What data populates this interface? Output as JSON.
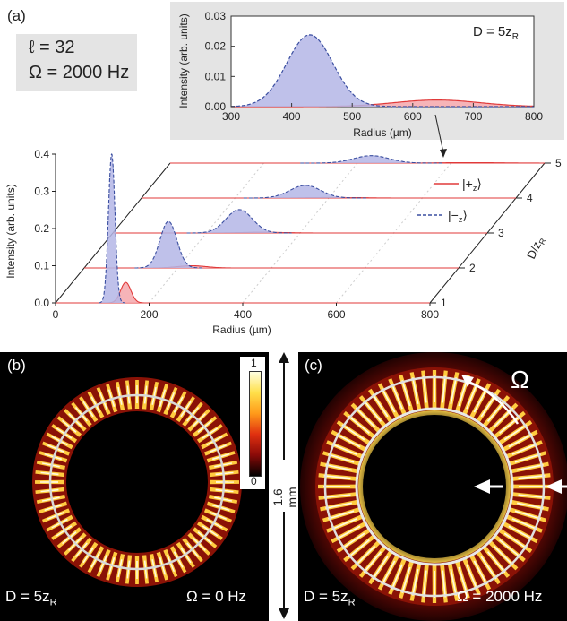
{
  "panels": {
    "a": {
      "label": "(a)"
    },
    "b": {
      "label": "(b)",
      "d_text": "D = 5z",
      "d_sub": "R",
      "omega_text": "Ω = 0 Hz"
    },
    "c": {
      "label": "(c)",
      "d_text": "D = 5z",
      "d_sub": "R",
      "omega_text": "Ω = 2000 Hz",
      "rotation_symbol": "Ω"
    }
  },
  "params": {
    "ell": "ℓ = 32",
    "omega": "Ω = 2000 Hz"
  },
  "scale_bar": {
    "label": "1.6 mm"
  },
  "colorbar": {
    "max": "1",
    "min": "0"
  },
  "colors": {
    "minus_fill": "#b4b6e6",
    "minus_line": "#3a4ea0",
    "plus_fill": "#f4a7ac",
    "plus_line": "#e03a3a",
    "inset_bg": "#e4e4e4"
  },
  "chart_data": [
    {
      "type": "line",
      "title": "D = 5z_R",
      "title_text": "D = 5z",
      "title_sub": "R",
      "xlabel": "Radius (µm)",
      "ylabel": "Intensity (arb. units)",
      "xlim": [
        300,
        800
      ],
      "ylim": [
        0,
        0.03
      ],
      "x_ticks": [
        "300",
        "400",
        "500",
        "600",
        "700",
        "800"
      ],
      "y_ticks": [
        "0.00",
        "0.01",
        "0.02",
        "0.03"
      ],
      "series": [
        {
          "key": "minus",
          "peak_x": 430,
          "peak_y": 0.0238,
          "width": 38
        },
        {
          "key": "plus",
          "peak_x": 640,
          "peak_y": 0.0022,
          "width": 70
        }
      ]
    },
    {
      "type": "line",
      "xlabel": "Radius (µm)",
      "ylabel": "Intensity (arb. units)",
      "zlabel": "D/z",
      "zlabel_sub": "R",
      "xlim": [
        0,
        800
      ],
      "ylim": [
        0,
        0.4
      ],
      "x_ticks": [
        "0",
        "200",
        "400",
        "600",
        "800"
      ],
      "y_ticks": [
        "0.0",
        "0.1",
        "0.2",
        "0.3",
        "0.4"
      ],
      "z_ticks": [
        "1",
        "2",
        "3",
        "4",
        "5"
      ],
      "legend": {
        "placement": "right",
        "entries": [
          {
            "key": "plus",
            "label": "|+",
            "sub": "z",
            "close": "⟩"
          },
          {
            "key": "minus",
            "label": "|−",
            "sub": "z",
            "close": "⟩"
          }
        ]
      },
      "slices": [
        {
          "d": 1,
          "minus": {
            "peak_x": 120,
            "peak_y": 0.4,
            "width": 7
          },
          "plus": {
            "peak_x": 150,
            "peak_y": 0.055,
            "width": 11
          }
        },
        {
          "d": 2,
          "minus": {
            "peak_x": 180,
            "peak_y": 0.125,
            "width": 18
          },
          "plus": {
            "peak_x": 230,
            "peak_y": 0.006,
            "width": 30
          }
        },
        {
          "d": 3,
          "minus": {
            "peak_x": 270,
            "peak_y": 0.063,
            "width": 28
          },
          "plus": {
            "peak_x": 320,
            "peak_y": 0.002,
            "width": 45
          }
        },
        {
          "d": 4,
          "minus": {
            "peak_x": 350,
            "peak_y": 0.034,
            "width": 33
          },
          "plus": {
            "peak_x": 410,
            "peak_y": 0.0015,
            "width": 55
          }
        },
        {
          "d": 5,
          "minus": {
            "peak_x": 430,
            "peak_y": 0.02,
            "width": 38
          },
          "plus": {
            "peak_x": 640,
            "peak_y": 0.0011,
            "width": 70
          }
        }
      ]
    }
  ]
}
